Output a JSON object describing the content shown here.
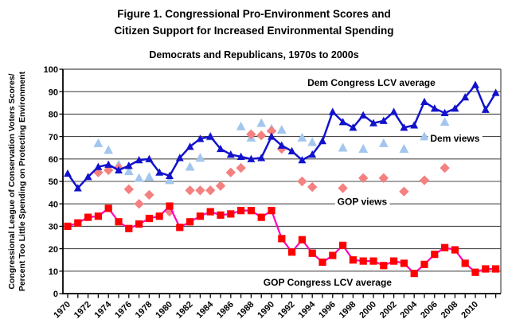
{
  "figure": {
    "title_line1": "Figure 1. Congressional Pro-Environment Scores and",
    "title_line2": "Citizen Support for Increased Environmental Spending",
    "subtitle": "Democrats and Republicans, 1970s to 2000s",
    "ylabel_line1": "Congressional League of Conservation Voters Scores/",
    "ylabel_line2": "Percent Too Little Spending on Protecting Environment"
  },
  "chart_data": {
    "type": "line",
    "title": "Democrats and Republicans, 1970s to 2000s",
    "xlabel": "",
    "ylabel": "Congressional League of Conservation Voters Scores/ Percent Too Little Spending on Protecting Environment",
    "ylim": [
      0,
      100
    ],
    "y_ticks": [
      0,
      10,
      20,
      30,
      40,
      50,
      60,
      70,
      80,
      90,
      100
    ],
    "x_tick_start": 1970,
    "x_tick_end": 2012,
    "x_label_years": [
      1970,
      1972,
      1974,
      1976,
      1978,
      1980,
      1982,
      1984,
      1986,
      1988,
      1990,
      1992,
      1994,
      1996,
      1998,
      2000,
      2002,
      2004,
      2006,
      2008,
      2010
    ],
    "grid": "horizontal-only",
    "colors": {
      "dem_congress": "#1212cc",
      "dem_views": "#a3c6ee",
      "gop_views": "#f58080",
      "gop_square": "#fe0000",
      "gop_line": "#ff00bb",
      "gridline": "#4a4a4a"
    },
    "series": [
      {
        "name": "Dem views",
        "type": "scatter",
        "marker": "triangle",
        "color": "#a3c6ee",
        "marker_size": 6.2,
        "years": [
          1973,
          1974,
          1975,
          1976,
          1977,
          1978,
          1980,
          1982,
          1983,
          1984,
          1987,
          1988,
          1989,
          1990,
          1991,
          1993,
          1994,
          1997,
          1999,
          2001,
          2003,
          2005,
          2007
        ],
        "values": [
          67,
          64,
          57.5,
          54.5,
          51.5,
          52,
          50.5,
          56.5,
          60.5,
          70,
          74.5,
          69.5,
          76,
          73.5,
          73,
          69.5,
          67.5,
          65,
          64.5,
          67,
          64.5,
          70,
          76.5
        ]
      },
      {
        "name": "GOP views",
        "type": "scatter",
        "marker": "diamond",
        "color": "#f58080",
        "marker_size": 6.2,
        "years": [
          1973,
          1974,
          1975,
          1976,
          1977,
          1978,
          1980,
          1982,
          1983,
          1984,
          1985,
          1986,
          1987,
          1988,
          1989,
          1990,
          1991,
          1993,
          1994,
          1997,
          1999,
          2001,
          2003,
          2005,
          2007
        ],
        "values": [
          54,
          55,
          56,
          46.5,
          40,
          44,
          36.5,
          46,
          46,
          46,
          48,
          54,
          56,
          71,
          70.5,
          72.5,
          64.5,
          50,
          47.5,
          47,
          51.5,
          51.5,
          45.5,
          50.5,
          56
        ]
      },
      {
        "name": "GOP Congress LCV average",
        "type": "line",
        "marker": "square",
        "color": "#fe0000",
        "line_color": "#ff00bb",
        "line_width": 2.2,
        "marker_size": 4.6,
        "start_year": 1970,
        "values": [
          30,
          31.5,
          34,
          34.5,
          38,
          32,
          29,
          31,
          33.5,
          34.5,
          39,
          29.5,
          32,
          34.5,
          36.5,
          35,
          35.5,
          37,
          37,
          34,
          37,
          24.5,
          18.5,
          24,
          18,
          14,
          17,
          21.5,
          15,
          14.5,
          14.5,
          12.5,
          14.5,
          13.5,
          9,
          13,
          17.5,
          20.5,
          19.5,
          13.5,
          9.5,
          11,
          11
        ]
      },
      {
        "name": "Dem Congress LCV average",
        "type": "line",
        "marker": "triangle",
        "color": "#1212cc",
        "line_color": "#1212cc",
        "line_width": 2.5,
        "marker_size": 5.2,
        "start_year": 1970,
        "values": [
          53.5,
          47,
          52,
          56.5,
          57.5,
          55,
          57,
          59.5,
          60,
          54,
          52.5,
          60.5,
          65.5,
          69,
          70,
          64.5,
          62,
          61,
          60,
          60.5,
          70,
          66,
          63.5,
          59.5,
          62,
          68,
          81,
          76.5,
          74,
          79.5,
          76,
          77,
          81,
          74,
          75,
          85.5,
          82.5,
          80.5,
          82.5,
          87.5,
          93,
          82,
          89.5
        ]
      }
    ],
    "annotations": [
      {
        "text": "Dem Congress LCV average",
        "x_year": 1999.8,
        "y_value": 94
      },
      {
        "text": "Dem views",
        "x_year": 2008.0,
        "y_value": 69.2
      },
      {
        "text": "GOP views",
        "x_year": 1998.9,
        "y_value": 41.1
      },
      {
        "text": "GOP Congress LCV average",
        "x_year": 1995.5,
        "y_value": 5
      }
    ]
  }
}
